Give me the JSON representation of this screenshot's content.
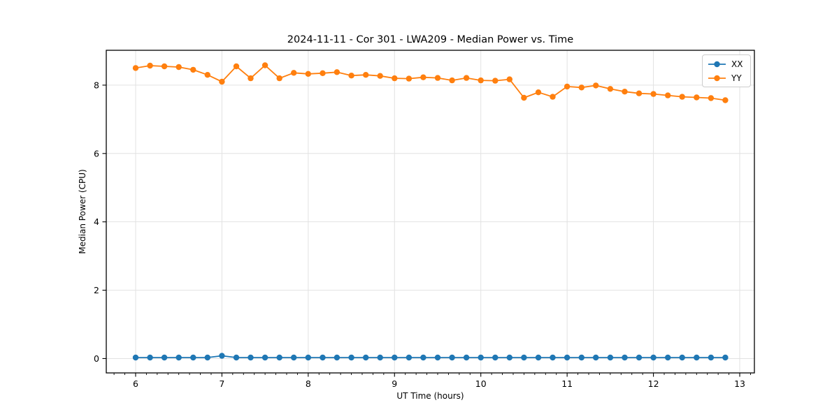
{
  "chart_data": {
    "type": "line",
    "title": "2024-11-11 - Cor 301 - LWA209 - Median Power vs. Time",
    "xlabel": "UT Time (hours)",
    "ylabel": "Median Power (CPU)",
    "xlim": [
      5.66,
      13.17
    ],
    "ylim": [
      -0.42,
      9.02
    ],
    "xticks": [
      6,
      7,
      8,
      9,
      10,
      11,
      12,
      13
    ],
    "yticks": [
      0,
      2,
      4,
      6,
      8
    ],
    "x_minor_step": 0.125,
    "grid": true,
    "grid_color": "#e2e2e2",
    "spine_color": "#000000",
    "text_color": "#000000",
    "legend_position": "upper right",
    "x": [
      6.0,
      6.167,
      6.333,
      6.5,
      6.667,
      6.833,
      7.0,
      7.167,
      7.333,
      7.5,
      7.667,
      7.833,
      8.0,
      8.167,
      8.333,
      8.5,
      8.667,
      8.833,
      9.0,
      9.167,
      9.333,
      9.5,
      9.667,
      9.833,
      10.0,
      10.167,
      10.333,
      10.5,
      10.667,
      10.833,
      11.0,
      11.167,
      11.333,
      11.5,
      11.667,
      11.833,
      12.0,
      12.167,
      12.333,
      12.5,
      12.667,
      12.833
    ],
    "series": [
      {
        "name": "XX",
        "color": "#1f77b4",
        "values": [
          0.03,
          0.03,
          0.03,
          0.03,
          0.03,
          0.03,
          0.08,
          0.03,
          0.03,
          0.03,
          0.03,
          0.03,
          0.03,
          0.03,
          0.03,
          0.03,
          0.03,
          0.03,
          0.03,
          0.03,
          0.03,
          0.03,
          0.03,
          0.03,
          0.03,
          0.03,
          0.03,
          0.03,
          0.03,
          0.03,
          0.03,
          0.03,
          0.03,
          0.03,
          0.03,
          0.03,
          0.03,
          0.03,
          0.03,
          0.03,
          0.03,
          0.03
        ]
      },
      {
        "name": "YY",
        "color": "#ff7f0e",
        "values": [
          8.5,
          8.57,
          8.55,
          8.53,
          8.45,
          8.3,
          8.1,
          8.55,
          8.2,
          8.58,
          8.2,
          8.36,
          8.33,
          8.35,
          8.38,
          8.28,
          8.3,
          8.27,
          8.2,
          8.19,
          8.23,
          8.21,
          8.14,
          8.21,
          8.14,
          8.13,
          8.17,
          7.63,
          7.79,
          7.66,
          7.96,
          7.93,
          7.99,
          7.89,
          7.81,
          7.76,
          7.74,
          7.7,
          7.66,
          7.64,
          7.62,
          7.56
        ]
      }
    ]
  }
}
